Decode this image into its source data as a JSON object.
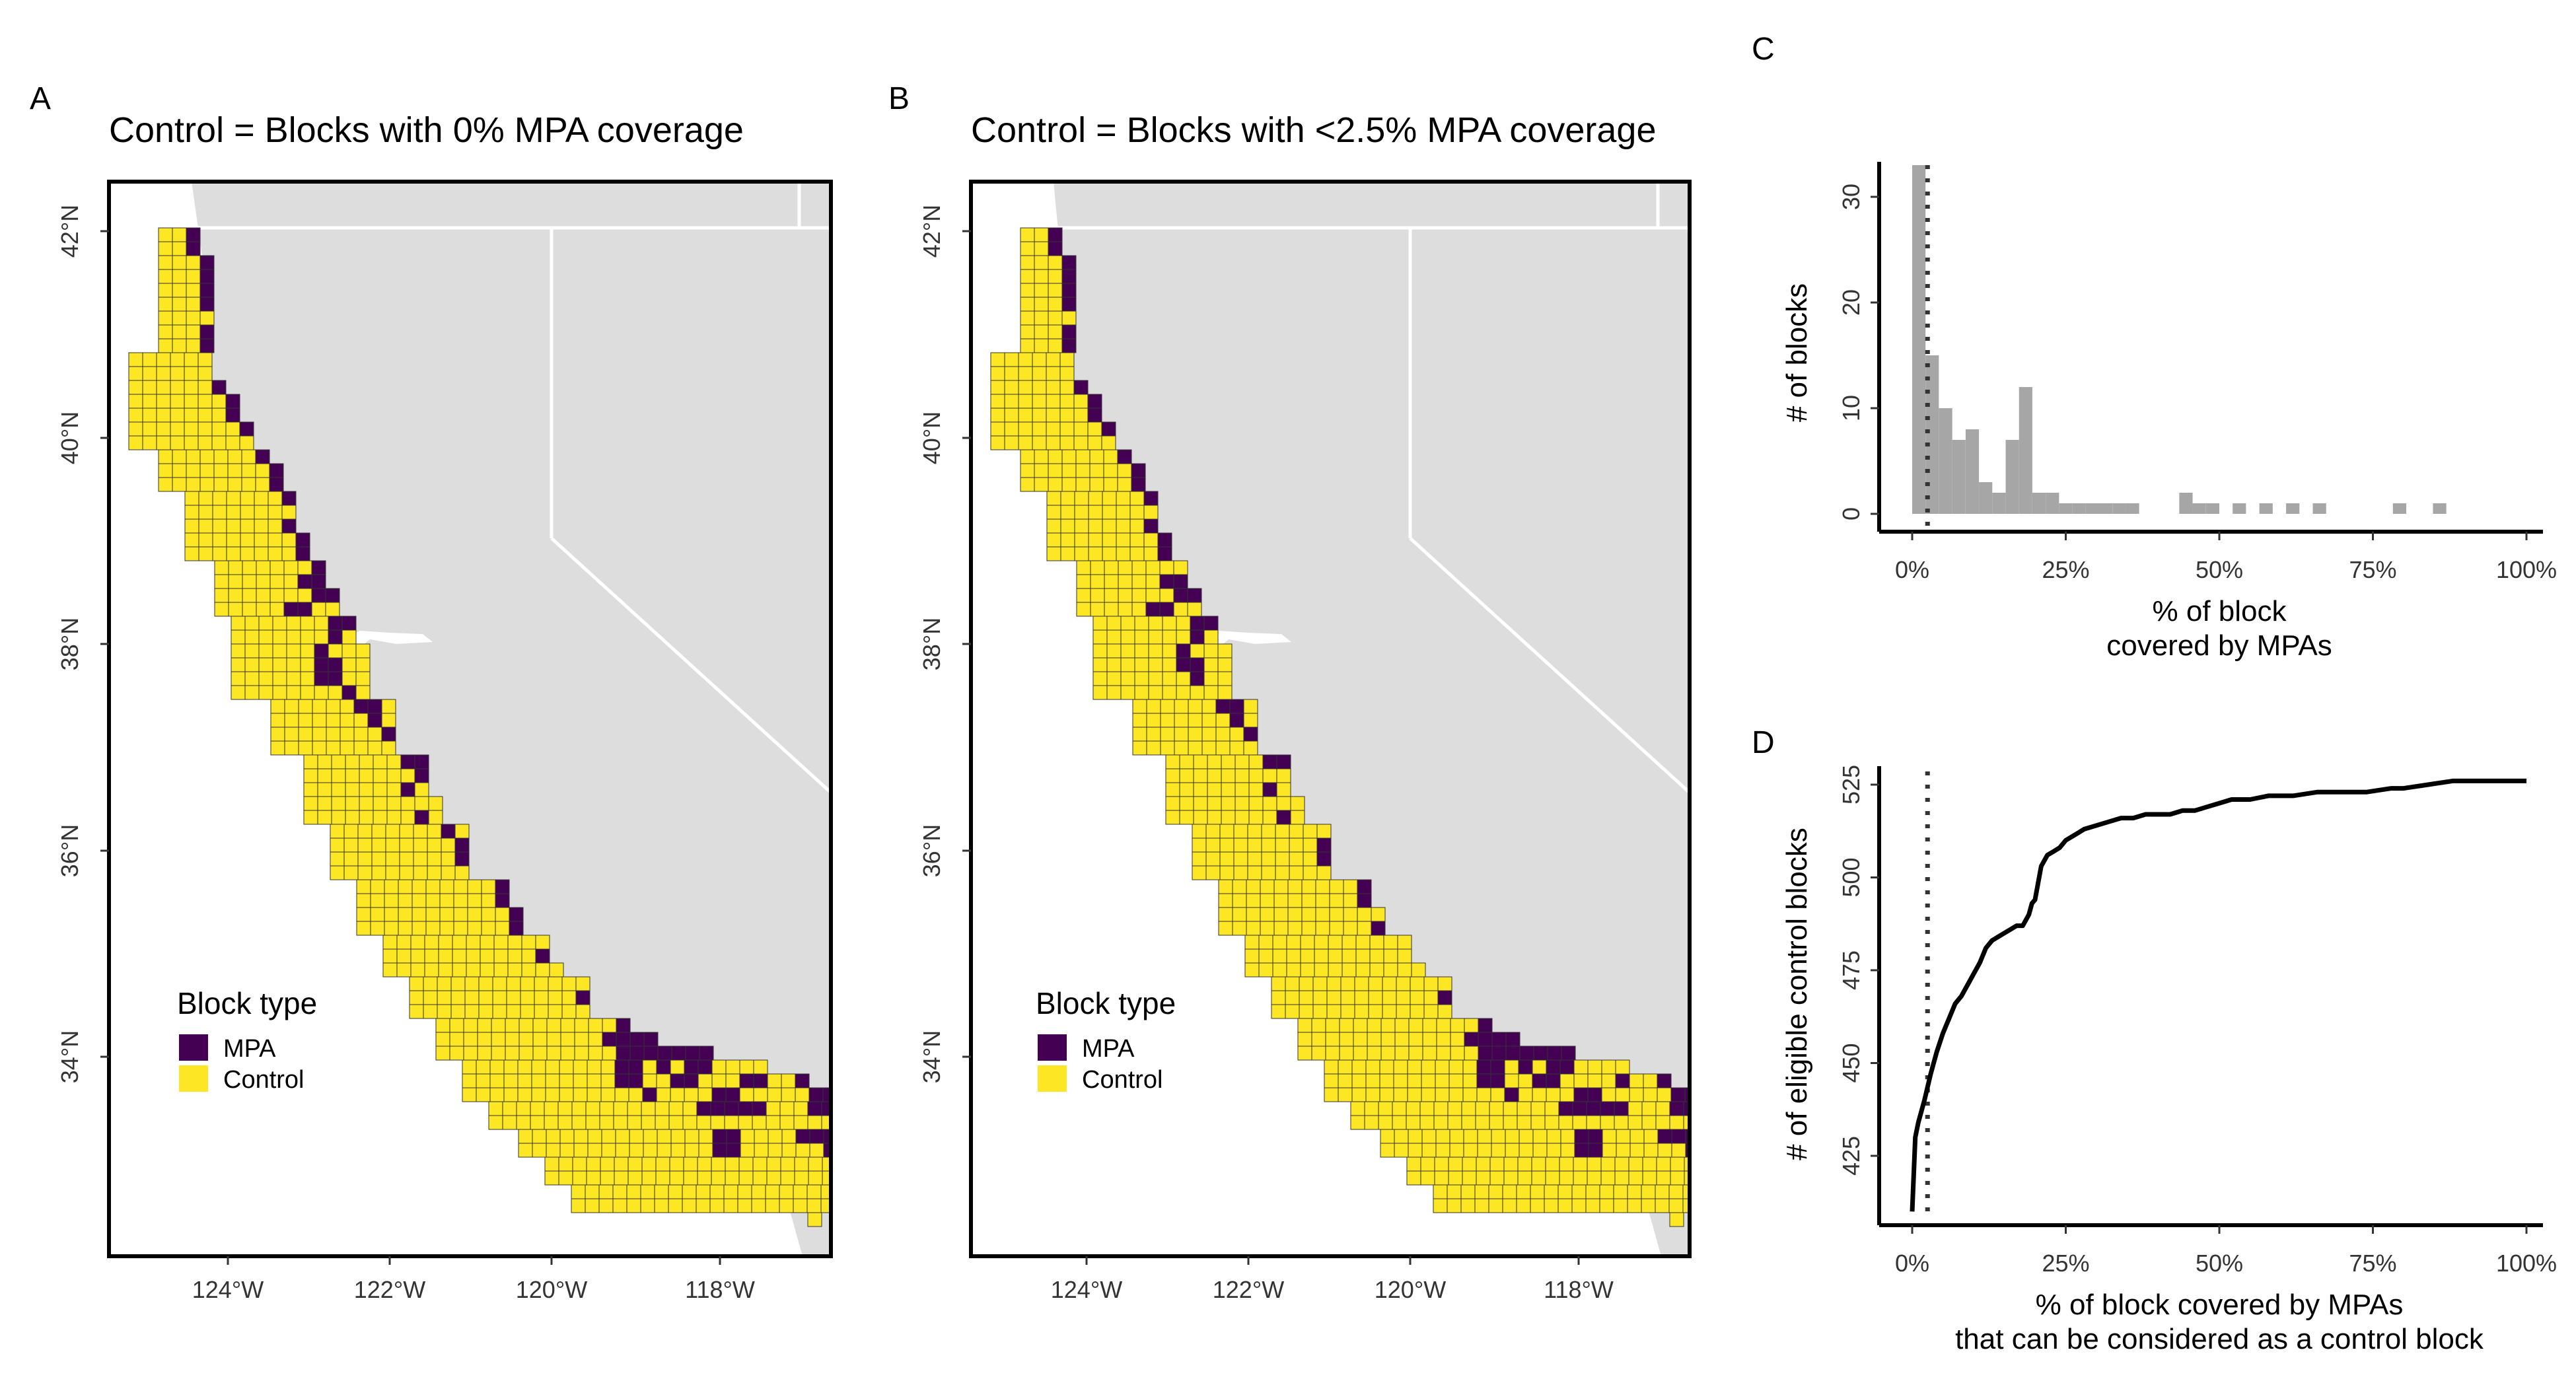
{
  "panels": {
    "A": {
      "tag": "A",
      "title": "Control = Blocks with 0% MPA coverage",
      "legend": {
        "title": "Block type",
        "items": [
          {
            "label": "MPA",
            "color": "#440154"
          },
          {
            "label": "Control",
            "color": "#FDE725"
          }
        ]
      },
      "lat_labels": [
        "42°N",
        "40°N",
        "38°N",
        "36°N",
        "34°N"
      ],
      "lon_labels": [
        "124°W",
        "122°W",
        "120°W",
        "118°W"
      ]
    },
    "B": {
      "tag": "B",
      "title": "Control = Blocks with <2.5% MPA coverage",
      "legend": {
        "title": "Block type",
        "items": [
          {
            "label": "MPA",
            "color": "#440154"
          },
          {
            "label": "Control",
            "color": "#FDE725"
          }
        ]
      },
      "lat_labels": [
        "42°N",
        "40°N",
        "38°N",
        "36°N",
        "34°N"
      ],
      "lon_labels": [
        "124°W",
        "122°W",
        "120°W",
        "118°W"
      ]
    },
    "C": {
      "tag": "C"
    },
    "D": {
      "tag": "D"
    }
  },
  "colors": {
    "mpa": "#440154",
    "control": "#FDE725",
    "land": "#DDDDDD",
    "hist_bar": "#A6A6A6"
  },
  "chart_data": [
    {
      "type": "bar",
      "panel": "C",
      "title": "",
      "xlabel": "% of block\ncovered by MPAs",
      "ylabel": "# of blocks",
      "x_ticks": [
        "0%",
        "25%",
        "50%",
        "75%",
        "100%"
      ],
      "y_ticks": [
        "0",
        "10",
        "20",
        "30"
      ],
      "xlim": [
        0,
        100
      ],
      "ylim": [
        0,
        33
      ],
      "bin_width": 2.17,
      "bins_start": [
        0,
        2.17,
        4.35,
        6.52,
        8.7,
        10.87,
        13.04,
        15.22,
        17.39,
        19.57,
        21.74,
        23.91,
        26.09,
        28.26,
        30.43,
        32.61,
        34.78,
        43.48,
        45.65,
        47.83,
        52.17,
        56.52,
        60.87,
        65.22,
        78.26,
        84.78
      ],
      "counts": [
        33,
        15,
        10,
        7,
        8,
        3,
        2,
        7,
        12,
        2,
        2,
        1,
        1,
        1,
        1,
        1,
        1,
        2,
        1,
        1,
        1,
        1,
        1,
        1,
        1,
        1
      ],
      "annotation": {
        "vline_x": 2.5,
        "style": "dotted"
      }
    },
    {
      "type": "line",
      "panel": "D",
      "title": "",
      "xlabel": "% of block covered by MPAs\nthat can be considered as a control block",
      "ylabel": "# of eligible control blocks",
      "x_ticks": [
        "0%",
        "25%",
        "50%",
        "75%",
        "100%"
      ],
      "y_ticks": [
        "425",
        "450",
        "475",
        "500",
        "525"
      ],
      "xlim": [
        0,
        100
      ],
      "ylim": [
        407,
        530
      ],
      "x": [
        0,
        0.5,
        1,
        2,
        3,
        4,
        5,
        6,
        7,
        8,
        9,
        10,
        11,
        12,
        13,
        14,
        15,
        16,
        17,
        18,
        19,
        19.5,
        20,
        21,
        22,
        23,
        24,
        25,
        26,
        27,
        28,
        30,
        32,
        34,
        36,
        38,
        40,
        42,
        44,
        46,
        48,
        50,
        52,
        55,
        58,
        62,
        66,
        70,
        74,
        78,
        80,
        84,
        88,
        92,
        96,
        100
      ],
      "y": [
        410,
        430,
        434,
        440,
        447,
        453,
        458,
        462,
        466,
        468,
        471,
        474,
        477,
        481,
        483,
        484,
        485,
        486,
        487,
        487,
        490,
        493,
        494,
        503,
        506,
        507,
        508,
        510,
        511,
        512,
        513,
        514,
        515,
        516,
        516,
        517,
        517,
        517,
        518,
        518,
        519,
        520,
        521,
        521,
        522,
        522,
        523,
        523,
        523,
        524,
        524,
        525,
        526,
        526,
        526,
        526
      ],
      "annotation": {
        "vline_x": 2.5,
        "style": "dotted"
      }
    }
  ]
}
